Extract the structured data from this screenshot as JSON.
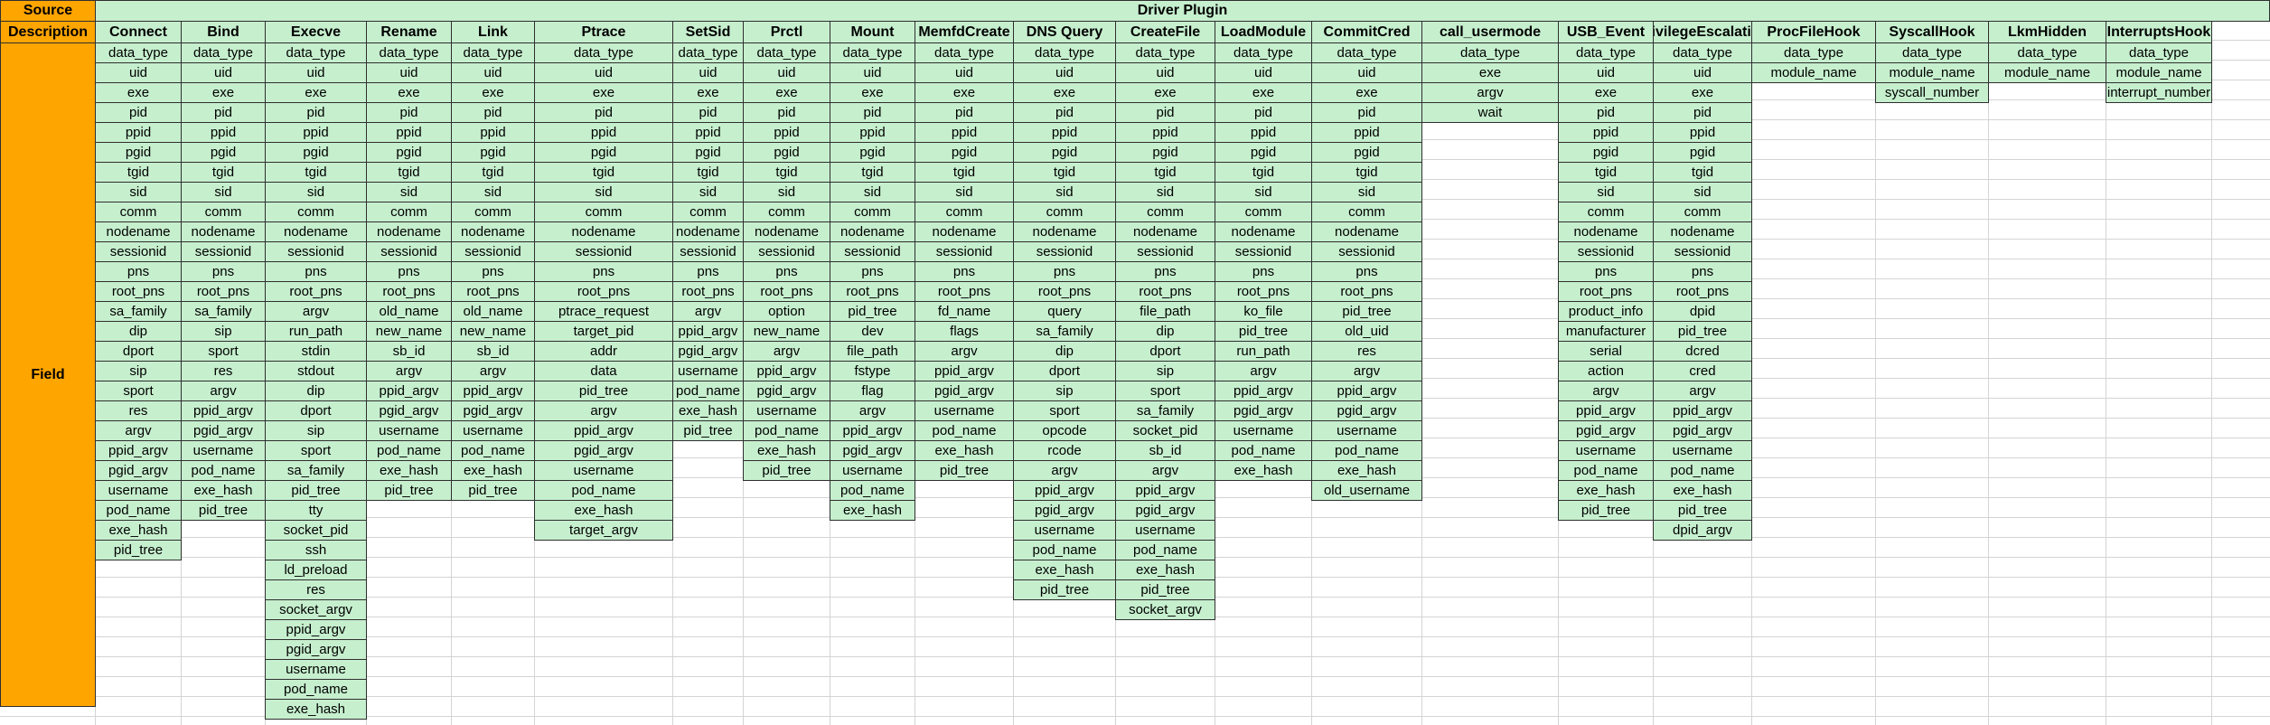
{
  "source_label": "Source",
  "description_label": "Description",
  "field_label": "Field",
  "driver_label": "Driver Plugin",
  "columns": [
    {
      "name": "Connect",
      "fields": [
        "data_type",
        "uid",
        "exe",
        "pid",
        "ppid",
        "pgid",
        "tgid",
        "sid",
        "comm",
        "nodename",
        "sessionid",
        "pns",
        "root_pns",
        "sa_family",
        "dip",
        "dport",
        "sip",
        "sport",
        "res",
        "argv",
        "ppid_argv",
        "pgid_argv",
        "username",
        "pod_name",
        "exe_hash",
        "pid_tree"
      ]
    },
    {
      "name": "Bind",
      "fields": [
        "data_type",
        "uid",
        "exe",
        "pid",
        "ppid",
        "pgid",
        "tgid",
        "sid",
        "comm",
        "nodename",
        "sessionid",
        "pns",
        "root_pns",
        "sa_family",
        "sip",
        "sport",
        "res",
        "argv",
        "ppid_argv",
        "pgid_argv",
        "username",
        "pod_name",
        "exe_hash",
        "pid_tree"
      ]
    },
    {
      "name": "Execve",
      "fields": [
        "data_type",
        "uid",
        "exe",
        "pid",
        "ppid",
        "pgid",
        "tgid",
        "sid",
        "comm",
        "nodename",
        "sessionid",
        "pns",
        "root_pns",
        "argv",
        "run_path",
        "stdin",
        "stdout",
        "dip",
        "dport",
        "sip",
        "sport",
        "sa_family",
        "pid_tree",
        "tty",
        "socket_pid",
        "ssh",
        "ld_preload",
        "res",
        "socket_argv",
        "ppid_argv",
        "pgid_argv",
        "username",
        "pod_name",
        "exe_hash"
      ]
    },
    {
      "name": "Rename",
      "fields": [
        "data_type",
        "uid",
        "exe",
        "pid",
        "ppid",
        "pgid",
        "tgid",
        "sid",
        "comm",
        "nodename",
        "sessionid",
        "pns",
        "root_pns",
        "old_name",
        "new_name",
        "sb_id",
        "argv",
        "ppid_argv",
        "pgid_argv",
        "username",
        "pod_name",
        "exe_hash",
        "pid_tree"
      ]
    },
    {
      "name": "Link",
      "fields": [
        "data_type",
        "uid",
        "exe",
        "pid",
        "ppid",
        "pgid",
        "tgid",
        "sid",
        "comm",
        "nodename",
        "sessionid",
        "pns",
        "root_pns",
        "old_name",
        "new_name",
        "sb_id",
        "argv",
        "ppid_argv",
        "pgid_argv",
        "username",
        "pod_name",
        "exe_hash",
        "pid_tree"
      ]
    },
    {
      "name": "Ptrace",
      "fields": [
        "data_type",
        "uid",
        "exe",
        "pid",
        "ppid",
        "pgid",
        "tgid",
        "sid",
        "comm",
        "nodename",
        "sessionid",
        "pns",
        "root_pns",
        "ptrace_request",
        "target_pid",
        "addr",
        "data",
        "pid_tree",
        "argv",
        "ppid_argv",
        "pgid_argv",
        "username",
        "pod_name",
        "exe_hash",
        "target_argv"
      ]
    },
    {
      "name": "SetSid",
      "fields": [
        "data_type",
        "uid",
        "exe",
        "pid",
        "ppid",
        "pgid",
        "tgid",
        "sid",
        "comm",
        "nodename",
        "sessionid",
        "pns",
        "root_pns",
        "argv",
        "ppid_argv",
        "pgid_argv",
        "username",
        "pod_name",
        "exe_hash",
        "pid_tree"
      ]
    },
    {
      "name": "Prctl",
      "fields": [
        "data_type",
        "uid",
        "exe",
        "pid",
        "ppid",
        "pgid",
        "tgid",
        "sid",
        "comm",
        "nodename",
        "sessionid",
        "pns",
        "root_pns",
        "option",
        "new_name",
        "argv",
        "ppid_argv",
        "pgid_argv",
        "username",
        "pod_name",
        "exe_hash",
        "pid_tree"
      ]
    },
    {
      "name": "Mount",
      "fields": [
        "data_type",
        "uid",
        "exe",
        "pid",
        "ppid",
        "pgid",
        "tgid",
        "sid",
        "comm",
        "nodename",
        "sessionid",
        "pns",
        "root_pns",
        "pid_tree",
        "dev",
        "file_path",
        "fstype",
        "flag",
        "argv",
        "ppid_argv",
        "pgid_argv",
        "username",
        "pod_name",
        "exe_hash"
      ]
    },
    {
      "name": "MemfdCreate",
      "fields": [
        "data_type",
        "uid",
        "exe",
        "pid",
        "ppid",
        "pgid",
        "tgid",
        "sid",
        "comm",
        "nodename",
        "sessionid",
        "pns",
        "root_pns",
        "fd_name",
        "flags",
        "argv",
        "ppid_argv",
        "pgid_argv",
        "username",
        "pod_name",
        "exe_hash",
        "pid_tree"
      ]
    },
    {
      "name": "DNS Query",
      "fields": [
        "data_type",
        "uid",
        "exe",
        "pid",
        "ppid",
        "pgid",
        "tgid",
        "sid",
        "comm",
        "nodename",
        "sessionid",
        "pns",
        "root_pns",
        "query",
        "sa_family",
        "dip",
        "dport",
        "sip",
        "sport",
        "opcode",
        "rcode",
        "argv",
        "ppid_argv",
        "pgid_argv",
        "username",
        "pod_name",
        "exe_hash",
        "pid_tree"
      ]
    },
    {
      "name": "CreateFile",
      "fields": [
        "data_type",
        "uid",
        "exe",
        "pid",
        "ppid",
        "pgid",
        "tgid",
        "sid",
        "comm",
        "nodename",
        "sessionid",
        "pns",
        "root_pns",
        "file_path",
        "dip",
        "dport",
        "sip",
        "sport",
        "sa_family",
        "socket_pid",
        "sb_id",
        "argv",
        "ppid_argv",
        "pgid_argv",
        "username",
        "pod_name",
        "exe_hash",
        "pid_tree",
        "socket_argv"
      ]
    },
    {
      "name": "LoadModule",
      "fields": [
        "data_type",
        "uid",
        "exe",
        "pid",
        "ppid",
        "pgid",
        "tgid",
        "sid",
        "comm",
        "nodename",
        "sessionid",
        "pns",
        "root_pns",
        "ko_file",
        "pid_tree",
        "run_path",
        "argv",
        "ppid_argv",
        "pgid_argv",
        "username",
        "pod_name",
        "exe_hash"
      ]
    },
    {
      "name": "CommitCred",
      "fields": [
        "data_type",
        "uid",
        "exe",
        "pid",
        "ppid",
        "pgid",
        "tgid",
        "sid",
        "comm",
        "nodename",
        "sessionid",
        "pns",
        "root_pns",
        "pid_tree",
        "old_uid",
        "res",
        "argv",
        "ppid_argv",
        "pgid_argv",
        "username",
        "pod_name",
        "exe_hash",
        "old_username"
      ]
    },
    {
      "name": "call_usermode",
      "fields": [
        "data_type",
        "exe",
        "argv",
        "wait"
      ]
    },
    {
      "name": "USB_Event",
      "fields": [
        "data_type",
        "uid",
        "exe",
        "pid",
        "ppid",
        "pgid",
        "tgid",
        "sid",
        "comm",
        "nodename",
        "sessionid",
        "pns",
        "root_pns",
        "product_info",
        "manufacturer",
        "serial",
        "action",
        "argv",
        "ppid_argv",
        "pgid_argv",
        "username",
        "pod_name",
        "exe_hash",
        "pid_tree"
      ]
    },
    {
      "name": "PrivilegeEscalation",
      "fields": [
        "data_type",
        "uid",
        "exe",
        "pid",
        "ppid",
        "pgid",
        "tgid",
        "sid",
        "comm",
        "nodename",
        "sessionid",
        "pns",
        "root_pns",
        "dpid",
        "pid_tree",
        "dcred",
        "cred",
        "argv",
        "ppid_argv",
        "pgid_argv",
        "username",
        "pod_name",
        "exe_hash",
        "pid_tree",
        "dpid_argv"
      ]
    },
    {
      "name": "ProcFileHook",
      "fields": [
        "data_type",
        "module_name"
      ]
    },
    {
      "name": "SyscallHook",
      "fields": [
        "data_type",
        "module_name",
        "syscall_number"
      ]
    },
    {
      "name": "LkmHidden",
      "fields": [
        "data_type",
        "module_name"
      ]
    },
    {
      "name": "InterruptsHook",
      "fields": [
        "data_type",
        "module_name",
        "interrupt_number"
      ]
    }
  ]
}
